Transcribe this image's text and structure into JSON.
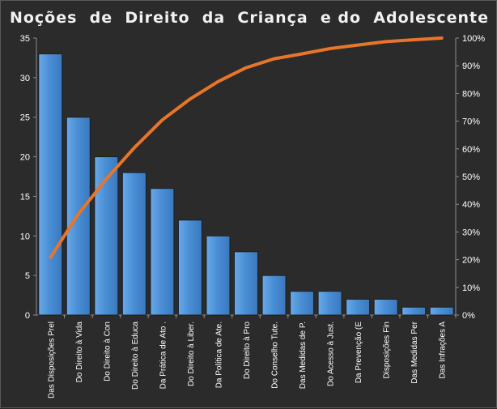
{
  "chart_data": {
    "type": "bar",
    "title": "Noções  de  Direito  da  Criança  e do  Adolescente",
    "categories": [
      "Das Disposições Prel",
      "Do Direito à Vida",
      "Do Direito à Con",
      "Do Direito à Educa",
      "Da Prática de Ato .",
      "Do Direito à Liber.",
      "Da Política de Ate.",
      "Do Direito à Pro",
      "Do Conselho Tute.",
      "Das Medidas de P.",
      "Do Acesso à Just.",
      "Da Prevenção (E",
      "Disposições Fin",
      "Das Medidas Per",
      "Das Infrações A"
    ],
    "series": [
      {
        "type": "bar",
        "values": [
          33,
          25,
          20,
          18,
          16,
          12,
          10,
          8,
          5,
          3,
          3,
          2,
          2,
          1,
          1
        ],
        "color": "#4a8fd6"
      },
      {
        "type": "line",
        "axis": "right",
        "values": [
          0.208,
          0.365,
          0.491,
          0.604,
          0.704,
          0.78,
          0.843,
          0.893,
          0.925,
          0.943,
          0.962,
          0.975,
          0.987,
          0.994,
          1.0
        ],
        "color": "#e8752a"
      }
    ],
    "y_left": {
      "ylim": [
        0,
        35
      ],
      "ticks": [
        "0",
        "5",
        "10",
        "15",
        "20",
        "25",
        "30",
        "35"
      ]
    },
    "y_right": {
      "ylim": [
        0,
        1
      ],
      "ticks": [
        "0%",
        "10%",
        "20%",
        "30%",
        "40%",
        "50%",
        "60%",
        "70%",
        "80%",
        "90%",
        "100%"
      ]
    },
    "grid": false,
    "legend": "none",
    "colors": {
      "background": "#2b2b2b",
      "text": "#ffffff",
      "axis": "#8c8c8c"
    }
  }
}
